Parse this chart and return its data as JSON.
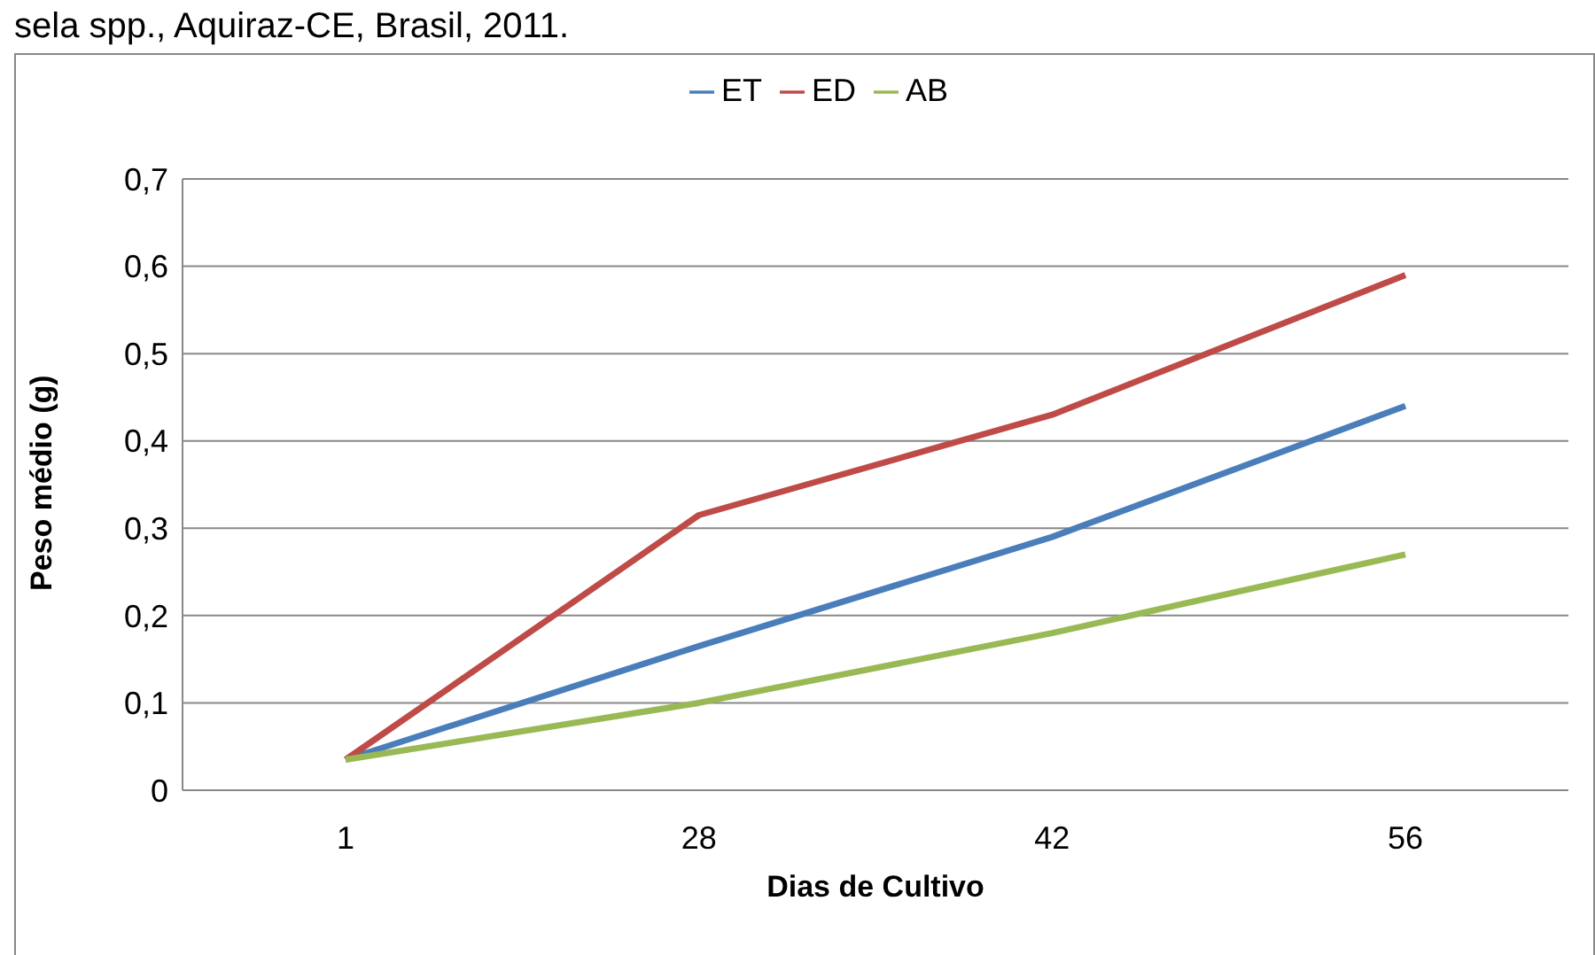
{
  "chart_data": {
    "type": "line",
    "title": "sela spp., Aquiraz-CE, Brasil, 2011.",
    "xlabel": "Dias de Cultivo",
    "ylabel": "Peso médio (g)",
    "categories": [
      "1",
      "28",
      "42",
      "56"
    ],
    "series": [
      {
        "name": "ET",
        "color": "#4a7ebb",
        "values": [
          0.035,
          0.165,
          0.29,
          0.44
        ]
      },
      {
        "name": "ED",
        "color": "#be4b48",
        "values": [
          0.035,
          0.315,
          0.43,
          0.59
        ]
      },
      {
        "name": "AB",
        "color": "#98b954",
        "values": [
          0.035,
          0.1,
          0.18,
          0.27
        ]
      }
    ],
    "ylim": [
      0,
      0.7
    ],
    "yticks": [
      0,
      {
        "value": 0.1,
        "label": "0,1"
      },
      {
        "value": 0.2,
        "label": "0,2"
      },
      {
        "value": 0.3,
        "label": "0,3"
      },
      {
        "value": 0.4,
        "label": "0,4"
      },
      {
        "value": 0.5,
        "label": "0,5"
      },
      {
        "value": 0.6,
        "label": "0,6"
      },
      {
        "value": 0.7,
        "label": "0,7"
      }
    ],
    "grid": "y",
    "legend": "top",
    "marker": "none",
    "line_style": "solid"
  }
}
